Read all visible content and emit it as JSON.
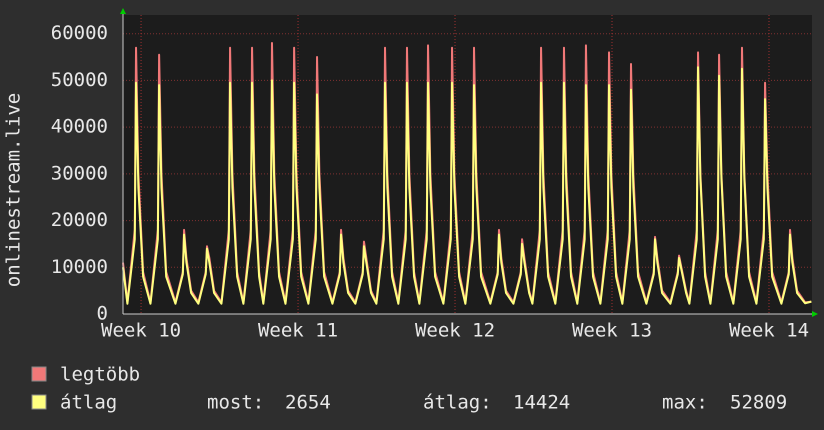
{
  "chart_data": {
    "type": "line",
    "y_label": "onlinestream.live",
    "xlim": [
      9.885,
      14.274
    ],
    "xticks": [
      {
        "value": 10,
        "label": "Week 10"
      },
      {
        "value": 11,
        "label": "Week 11"
      },
      {
        "value": 12,
        "label": "Week 12"
      },
      {
        "value": 13,
        "label": "Week 13"
      },
      {
        "value": 14,
        "label": "Week 14"
      }
    ],
    "ylim": [
      0,
      64000
    ],
    "yticks": [
      0,
      10000,
      20000,
      30000,
      40000,
      50000,
      60000
    ],
    "grid": true,
    "x": [
      9.885,
      9.913,
      9.96,
      9.968,
      9.983,
      10.013,
      10.06,
      10.107,
      10.115,
      10.13,
      10.16,
      10.219,
      10.266,
      10.274,
      10.289,
      10.319,
      10.365,
      10.412,
      10.42,
      10.435,
      10.465,
      10.512,
      10.559,
      10.567,
      10.582,
      10.612,
      10.652,
      10.699,
      10.707,
      10.722,
      10.752,
      10.779,
      10.826,
      10.834,
      10.849,
      10.879,
      10.92,
      10.967,
      10.975,
      10.99,
      11.02,
      11.066,
      11.113,
      11.121,
      11.136,
      11.166,
      11.219,
      11.266,
      11.274,
      11.289,
      11.319,
      11.365,
      11.412,
      11.42,
      11.435,
      11.465,
      11.499,
      11.546,
      11.554,
      11.569,
      11.599,
      11.639,
      11.686,
      11.694,
      11.709,
      11.739,
      11.773,
      11.82,
      11.828,
      11.843,
      11.873,
      11.926,
      11.973,
      11.981,
      11.996,
      12.026,
      12.066,
      12.113,
      12.121,
      12.136,
      12.166,
      12.225,
      12.272,
      12.28,
      12.295,
      12.325,
      12.372,
      12.419,
      12.427,
      12.442,
      12.472,
      12.493,
      12.54,
      12.548,
      12.563,
      12.593,
      12.639,
      12.686,
      12.694,
      12.709,
      12.739,
      12.779,
      12.826,
      12.834,
      12.849,
      12.879,
      12.926,
      12.973,
      12.981,
      12.996,
      13.026,
      13.066,
      13.113,
      13.121,
      13.136,
      13.166,
      13.219,
      13.266,
      13.274,
      13.289,
      13.319,
      13.372,
      13.419,
      13.427,
      13.442,
      13.472,
      13.493,
      13.54,
      13.548,
      13.563,
      13.593,
      13.627,
      13.674,
      13.682,
      13.697,
      13.727,
      13.773,
      13.82,
      13.828,
      13.843,
      13.873,
      13.92,
      13.967,
      13.975,
      13.99,
      14.02,
      14.079,
      14.126,
      14.134,
      14.149,
      14.179,
      14.23,
      14.27
    ],
    "series": [
      {
        "name": "legtöbb",
        "color": "#f07878",
        "values": [
          11000,
          2500,
          18000,
          57000,
          30000,
          9000,
          2500,
          18000,
          55500,
          30000,
          9000,
          2500,
          9000,
          18000,
          12000,
          5000,
          2500,
          9000,
          14500,
          12000,
          5000,
          2500,
          18000,
          57000,
          30000,
          9000,
          2500,
          18000,
          57000,
          30000,
          9000,
          2500,
          18000,
          58000,
          30000,
          9000,
          2500,
          18000,
          57000,
          30000,
          9000,
          2500,
          18000,
          55000,
          30000,
          9000,
          2500,
          9000,
          18000,
          12000,
          5000,
          2500,
          9000,
          15500,
          12000,
          5000,
          2500,
          18000,
          57000,
          30000,
          9000,
          2500,
          18000,
          57000,
          30000,
          9000,
          2500,
          18000,
          57500,
          30000,
          9000,
          2500,
          18000,
          57000,
          30000,
          9000,
          2500,
          18000,
          57000,
          30000,
          9000,
          2500,
          9000,
          18000,
          12000,
          5000,
          2500,
          9000,
          16000,
          12000,
          5000,
          2500,
          18000,
          57000,
          30000,
          9000,
          2500,
          18000,
          57000,
          30000,
          9000,
          2500,
          18000,
          57500,
          30000,
          9000,
          2500,
          18000,
          56000,
          30000,
          9000,
          2500,
          18000,
          53500,
          30000,
          9000,
          2500,
          9000,
          16500,
          12000,
          5000,
          2500,
          9000,
          12500,
          10000,
          5000,
          2500,
          18000,
          56000,
          30000,
          9000,
          2500,
          18000,
          55500,
          30000,
          9000,
          2500,
          18000,
          57000,
          30000,
          9000,
          2500,
          18000,
          49500,
          30000,
          9000,
          2500,
          9000,
          18000,
          12000,
          5000,
          2500,
          2654
        ]
      },
      {
        "name": "átlag",
        "color": "#ffff80",
        "values": [
          10000,
          2200,
          16000,
          49500,
          27000,
          8000,
          2200,
          16000,
          49000,
          27000,
          8000,
          2200,
          8500,
          17000,
          11000,
          4500,
          2200,
          8500,
          14000,
          11000,
          4500,
          2200,
          16000,
          49500,
          27000,
          8000,
          2200,
          16000,
          49500,
          27000,
          8000,
          2200,
          16000,
          50000,
          27000,
          8000,
          2200,
          16000,
          49500,
          27000,
          8000,
          2200,
          16000,
          47000,
          27000,
          8000,
          2200,
          8500,
          17000,
          11000,
          4500,
          2200,
          8500,
          14500,
          11000,
          4500,
          2200,
          16000,
          49500,
          27000,
          8000,
          2200,
          16000,
          49500,
          27000,
          8000,
          2200,
          16000,
          49500,
          27000,
          8000,
          2200,
          16000,
          49500,
          27000,
          8000,
          2200,
          16000,
          49000,
          27000,
          8000,
          2200,
          8500,
          17000,
          11000,
          4500,
          2200,
          8500,
          15000,
          11000,
          4500,
          2200,
          16000,
          49500,
          27000,
          8000,
          2200,
          16000,
          49500,
          27000,
          8000,
          2200,
          16000,
          49000,
          27000,
          8000,
          2200,
          16000,
          49000,
          27000,
          8000,
          2200,
          16000,
          48000,
          27000,
          8000,
          2200,
          8500,
          16000,
          11000,
          4500,
          2200,
          8500,
          12000,
          9500,
          4500,
          2200,
          16000,
          52809,
          29000,
          8000,
          2200,
          16000,
          51000,
          29000,
          8000,
          2200,
          16000,
          52500,
          29000,
          8000,
          2200,
          16000,
          46000,
          27000,
          8000,
          2200,
          8500,
          17000,
          11000,
          4500,
          2300,
          2654
        ]
      }
    ],
    "stats": [
      {
        "label": "most:",
        "value": 2654
      },
      {
        "label": "átlag:",
        "value": 14424
      },
      {
        "label": "max:",
        "value": 52809
      }
    ]
  }
}
